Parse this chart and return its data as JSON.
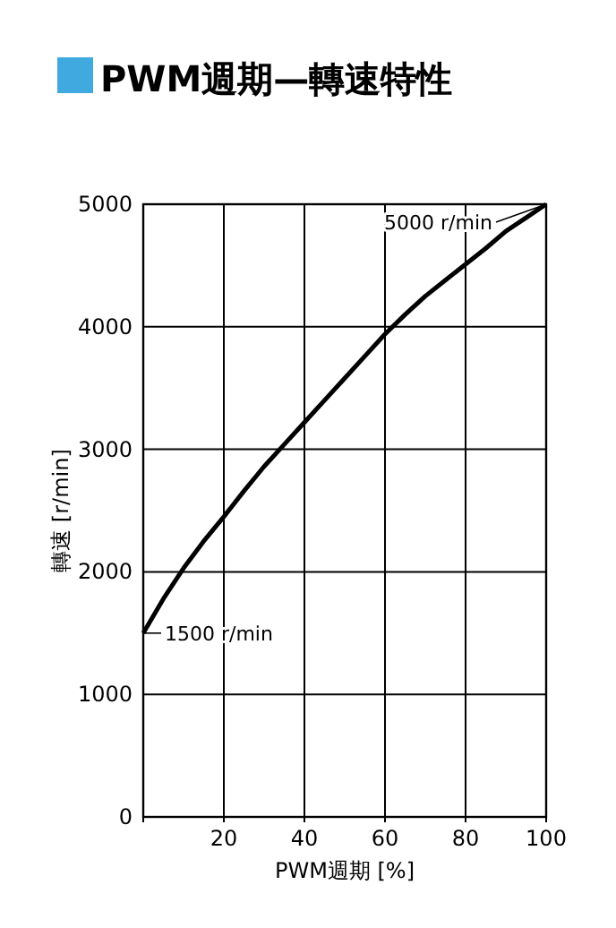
{
  "chart_data": {
    "type": "line",
    "title": "PWM週期—轉速特性",
    "xlabel": "PWM週期 [%]",
    "ylabel": "轉速 [r/min]",
    "x": [
      0,
      5,
      10,
      15,
      20,
      25,
      30,
      35,
      40,
      45,
      50,
      55,
      60,
      65,
      70,
      75,
      80,
      85,
      90,
      95,
      100
    ],
    "series": [
      {
        "color": "#000000",
        "values": [
          1500,
          1780,
          2030,
          2250,
          2450,
          2660,
          2860,
          3040,
          3220,
          3400,
          3580,
          3760,
          3940,
          4100,
          4250,
          4380,
          4510,
          4640,
          4780,
          4890,
          5000
        ]
      }
    ],
    "xlim": [
      0,
      100
    ],
    "ylim": [
      0,
      5000
    ],
    "xticks": [
      {
        "value": 0,
        "label": null
      },
      20,
      40,
      60,
      80,
      100
    ],
    "yticks": [
      0,
      1000,
      2000,
      3000,
      4000,
      5000
    ],
    "grid": true,
    "marker": "none",
    "line_style": "solid",
    "annotations": [
      {
        "text": "5000 r/min",
        "x": 100,
        "y": 5000
      },
      {
        "text": "1500 r/min",
        "x": 0,
        "y": 1500
      }
    ]
  }
}
